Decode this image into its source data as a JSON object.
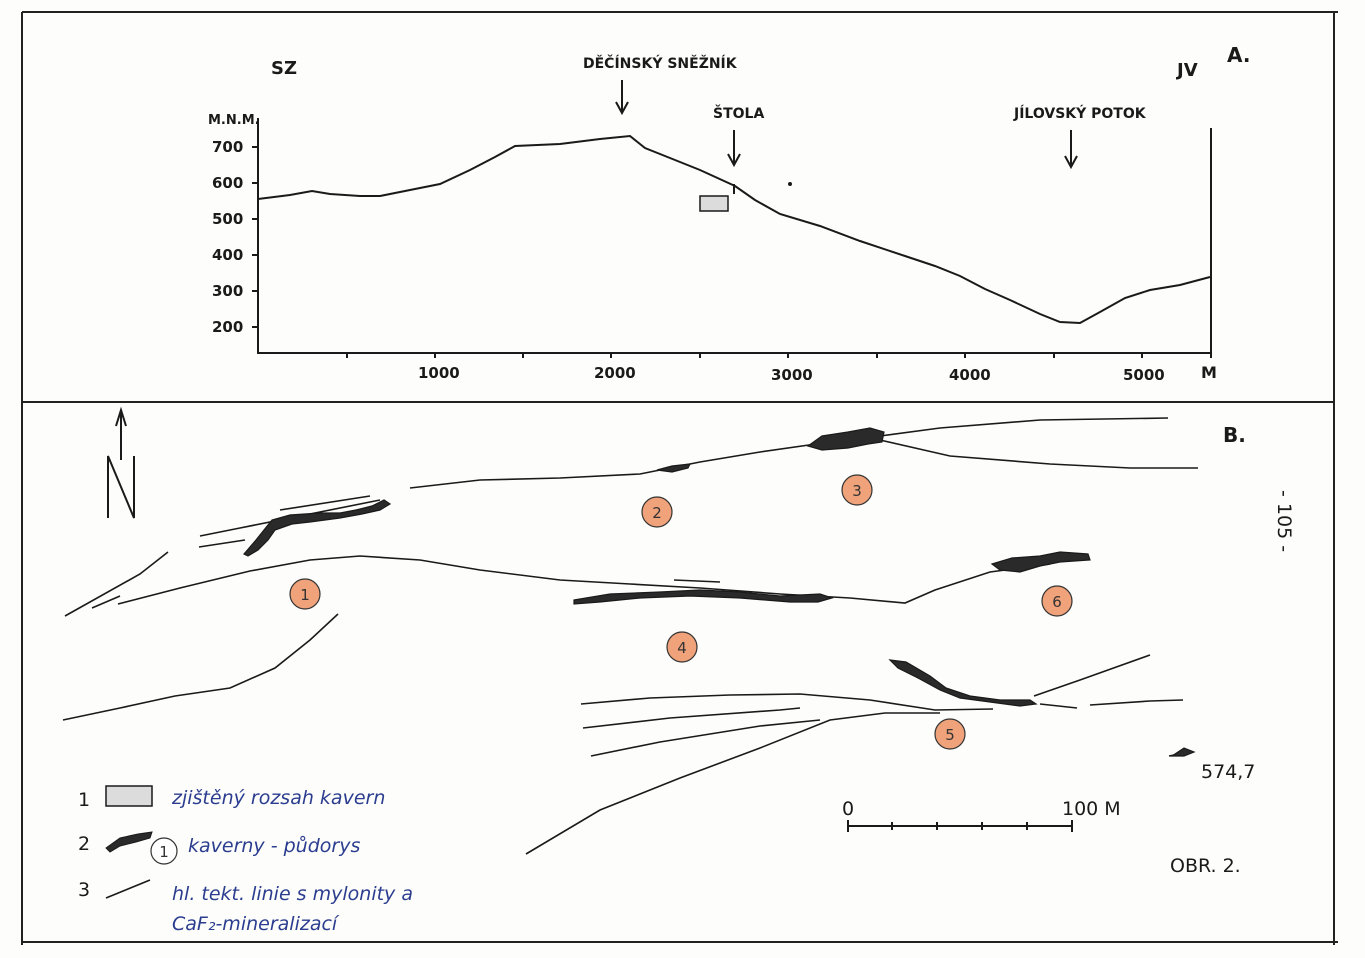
{
  "panel_a": {
    "label": "A.",
    "left_dir": "SZ",
    "right_dir": "JV",
    "y_unit": "M.N.M.",
    "y_ticks": [
      "700",
      "600",
      "500",
      "400",
      "300",
      "200"
    ],
    "x_ticks": [
      "1000",
      "2000",
      "3000",
      "4000",
      "5000"
    ],
    "x_unit": "M",
    "callouts": {
      "peak": "DĚČÍNSKÝ SNĚŽNÍK",
      "adit": "ŠTOLA",
      "stream": "JÍLOVSKÝ POTOK"
    }
  },
  "panel_b": {
    "label": "B.",
    "north": "N",
    "side_note": "- 105 -",
    "cavern_ids": [
      "1",
      "2",
      "3",
      "4",
      "5",
      "6"
    ],
    "elevation": "574,7",
    "scale": {
      "start": "0",
      "end": "100 M"
    },
    "figure_id": "OBR. 2."
  },
  "legend": [
    {
      "num": "1",
      "text": "zjištěný rozsah kavern"
    },
    {
      "num": "2",
      "marker": "1",
      "text": "kaverny - půdorys"
    },
    {
      "num": "3",
      "text": "hl. tekt. linie s mylonity a",
      "text2": "CaF₂-mineralizací"
    }
  ]
}
